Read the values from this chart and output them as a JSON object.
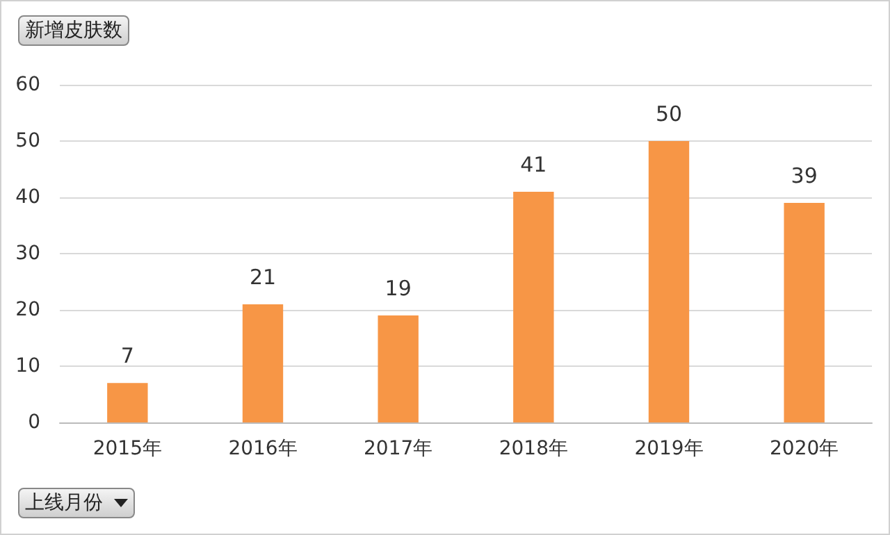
{
  "chart_data": {
    "type": "bar",
    "ylabel": "新增皮肤数",
    "xlabel": "上线月份",
    "categories": [
      "2015年",
      "2016年",
      "2017年",
      "2018年",
      "2019年",
      "2020年"
    ],
    "values": [
      7,
      21,
      19,
      41,
      50,
      39
    ],
    "color": "#f79646",
    "ylim": [
      0,
      60
    ],
    "yticks": [
      0,
      10,
      20,
      30,
      40,
      50,
      60
    ],
    "grid": "y",
    "data_labels": true
  }
}
